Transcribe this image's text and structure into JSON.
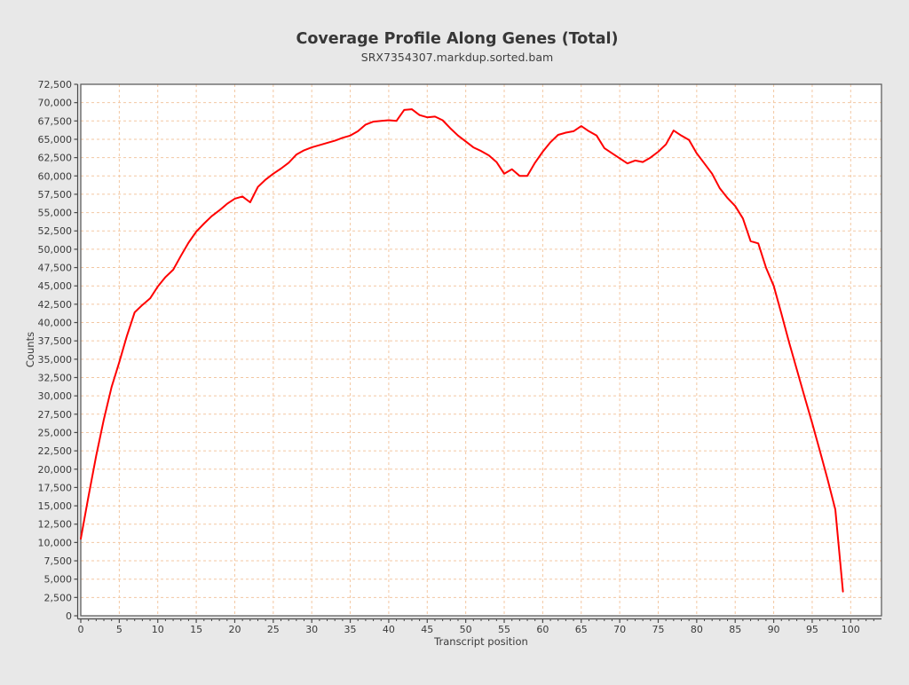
{
  "chart": {
    "title": "Coverage Profile Along Genes (Total)",
    "subtitle": "SRX7354307.markdup.sorted.bam",
    "xlabel": "Transcript position",
    "ylabel": "Counts"
  },
  "style": {
    "outer_bg": "#e8e8e8",
    "plot_bg": "#ffffff",
    "border_color": "#5f5f5f",
    "axis_color": "#4a4a4a",
    "grid_color": "#f3c7a2",
    "line_color": "#ff0000",
    "text_color": "#3a3a3a"
  },
  "chart_data": {
    "type": "line",
    "title": "Coverage Profile Along Genes (Total)",
    "subtitle": "SRX7354307.markdup.sorted.bam",
    "xlabel": "Transcript position",
    "ylabel": "Counts",
    "xlim": [
      0,
      104
    ],
    "ylim": [
      0,
      72500
    ],
    "grid": true,
    "grid_style": "dashed",
    "legend_position": "none",
    "x_ticks": [
      0,
      5,
      10,
      15,
      20,
      25,
      30,
      35,
      40,
      45,
      50,
      55,
      60,
      65,
      70,
      75,
      80,
      85,
      90,
      95,
      100
    ],
    "y_ticks": [
      0,
      2500,
      5000,
      7500,
      10000,
      12500,
      15000,
      17500,
      20000,
      22500,
      25000,
      27500,
      30000,
      32500,
      35000,
      37500,
      40000,
      42500,
      45000,
      47500,
      50000,
      52500,
      55000,
      57500,
      60000,
      62500,
      65000,
      67500,
      70000,
      72500
    ],
    "series": [
      {
        "name": "SRX7354307.markdup.sorted.bam",
        "color": "#ff0000",
        "x": [
          0,
          1,
          2,
          3,
          4,
          5,
          6,
          7,
          8,
          9,
          10,
          11,
          12,
          13,
          14,
          15,
          16,
          17,
          18,
          19,
          20,
          21,
          22,
          23,
          24,
          25,
          26,
          27,
          28,
          29,
          30,
          31,
          32,
          33,
          34,
          35,
          36,
          37,
          38,
          39,
          40,
          41,
          42,
          43,
          44,
          45,
          46,
          47,
          48,
          49,
          50,
          51,
          52,
          53,
          54,
          55,
          56,
          57,
          58,
          59,
          60,
          61,
          62,
          63,
          64,
          65,
          66,
          67,
          68,
          69,
          70,
          71,
          72,
          73,
          74,
          75,
          76,
          77,
          78,
          79,
          80,
          81,
          82,
          83,
          84,
          85,
          86,
          87,
          88,
          89,
          90,
          91,
          92,
          93,
          94,
          95,
          96,
          97,
          98,
          99
        ],
        "values": [
          10500,
          16300,
          21800,
          26800,
          31200,
          34600,
          38200,
          41400,
          42400,
          43300,
          44900,
          46200,
          47200,
          49100,
          50900,
          52400,
          53500,
          54500,
          55300,
          56200,
          56900,
          57200,
          56400,
          58500,
          59500,
          60300,
          61000,
          61800,
          62900,
          63500,
          63900,
          64200,
          64500,
          64800,
          65200,
          65500,
          66100,
          67000,
          67400,
          67500,
          67600,
          67500,
          69000,
          69100,
          68300,
          68000,
          68100,
          67600,
          66500,
          65500,
          64700,
          63900,
          63400,
          62800,
          61900,
          60300,
          60900,
          60000,
          60000,
          61800,
          63300,
          64600,
          65600,
          65900,
          66100,
          66800,
          66100,
          65500,
          63800,
          63100,
          62400,
          61700,
          62100,
          61900,
          62500,
          63300,
          64300,
          66200,
          65500,
          64900,
          63100,
          61700,
          60300,
          58300,
          57000,
          55900,
          54200,
          51100,
          50800,
          47500,
          45000,
          41200,
          37300,
          33600,
          29900,
          26300,
          22500,
          18600,
          14500,
          3300
        ]
      }
    ]
  }
}
